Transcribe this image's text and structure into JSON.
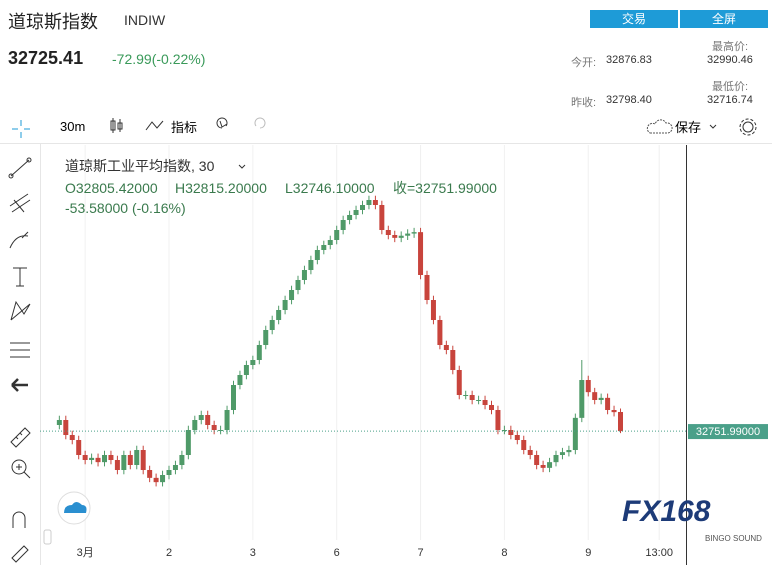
{
  "header": {
    "name": "道琼斯指数",
    "code": "INDIW",
    "price": "32725.41",
    "change": "-72.99(-0.22%)",
    "buttons": [
      "交易",
      "全屏"
    ],
    "stats": [
      {
        "label": "今开:",
        "value": "32876.83"
      },
      {
        "label": "最高价:",
        "value": "32990.46"
      },
      {
        "label": "昨收:",
        "value": "32798.40"
      },
      {
        "label": "最低价:",
        "value": "32716.74"
      }
    ]
  },
  "toolbar": {
    "interval": "30m",
    "indicators": "指标",
    "save": "保存"
  },
  "watermark": {
    "brand": "FX168",
    "sub": "BINGO SOUND"
  },
  "chart_data": {
    "type": "candlestick",
    "title": "道琼斯工业平均指数, 30",
    "legend": {
      "open": "O32805.42000",
      "high": "H32815.20000",
      "low": "L32746.10000",
      "close": "收=32751.99000",
      "change": "-53.58000 (-0.16%)"
    },
    "last_price_label": "32751.99000",
    "up_color": "#4f9a68",
    "down_color": "#c8443c",
    "xgrid": true,
    "xlim": [
      -3,
      97
    ],
    "ylim": [
      32447,
      33553
    ],
    "xticks": [
      {
        "value": 4,
        "label": "3月"
      },
      {
        "value": 17,
        "label": "2"
      },
      {
        "value": 30,
        "label": "3"
      },
      {
        "value": 43,
        "label": "6"
      },
      {
        "value": 56,
        "label": "7"
      },
      {
        "value": 69,
        "label": "8"
      },
      {
        "value": 82,
        "label": "9"
      },
      {
        "value": 93,
        "label": "13:00"
      }
    ],
    "series": {
      "open": [
        32769,
        32783,
        32741,
        32727,
        32685,
        32671,
        32677,
        32665,
        32685,
        32671,
        32643,
        32685,
        32657,
        32699,
        32643,
        32621,
        32609,
        32629,
        32643,
        32657,
        32685,
        32755,
        32783,
        32797,
        32769,
        32755,
        32755,
        32811,
        32881,
        32909,
        32937,
        32951,
        32993,
        33035,
        33063,
        33091,
        33119,
        33147,
        33175,
        33203,
        33231,
        33259,
        33273,
        33287,
        33315,
        33343,
        33357,
        33371,
        33385,
        33399,
        33385,
        33315,
        33301,
        33293,
        33299,
        33305,
        33309,
        33189,
        33119,
        33063,
        32993,
        32979,
        32923,
        32853,
        32853,
        32839,
        32839,
        32825,
        32811,
        32755,
        32755,
        32741,
        32727,
        32699,
        32685,
        32657,
        32649,
        32665,
        32685,
        32693,
        32699,
        32789,
        32895,
        32861,
        32839,
        32845,
        32811,
        32805.42
      ],
      "high": [
        32795,
        32795,
        32753,
        32739,
        32697,
        32689,
        32689,
        32697,
        32697,
        32683,
        32697,
        32697,
        32711,
        32711,
        32655,
        32633,
        32641,
        32655,
        32669,
        32697,
        32767,
        32795,
        32809,
        32809,
        32781,
        32767,
        32823,
        32893,
        32921,
        32949,
        32963,
        33005,
        33047,
        33075,
        33103,
        33131,
        33159,
        33187,
        33215,
        33243,
        33271,
        33285,
        33299,
        33327,
        33355,
        33369,
        33383,
        33397,
        33411,
        33411,
        33397,
        33327,
        33313,
        33311,
        33317,
        33321,
        33321,
        33201,
        33131,
        33075,
        33005,
        32991,
        32935,
        32865,
        32865,
        32851,
        32851,
        32837,
        32823,
        32767,
        32767,
        32753,
        32739,
        32711,
        32697,
        32669,
        32677,
        32697,
        32705,
        32711,
        32801,
        32951,
        32907,
        32873,
        32857,
        32857,
        32823,
        32815.2
      ],
      "low": [
        32757,
        32729,
        32715,
        32673,
        32659,
        32659,
        32653,
        32653,
        32659,
        32631,
        32631,
        32645,
        32645,
        32631,
        32609,
        32597,
        32597,
        32617,
        32631,
        32645,
        32673,
        32743,
        32771,
        32757,
        32743,
        32743,
        32743,
        32799,
        32869,
        32897,
        32925,
        32939,
        32981,
        33023,
        33051,
        33079,
        33107,
        33135,
        33163,
        33191,
        33219,
        33247,
        33261,
        33275,
        33303,
        33331,
        33345,
        33359,
        33373,
        33373,
        33303,
        33289,
        33281,
        33281,
        33287,
        33293,
        33177,
        33107,
        33051,
        32981,
        32967,
        32911,
        32841,
        32841,
        32827,
        32827,
        32813,
        32799,
        32743,
        32743,
        32729,
        32715,
        32687,
        32673,
        32645,
        32637,
        32637,
        32653,
        32673,
        32681,
        32687,
        32777,
        32849,
        32827,
        32827,
        32799,
        32793,
        32746.1
      ],
      "close": [
        32783,
        32741,
        32727,
        32685,
        32671,
        32677,
        32665,
        32685,
        32671,
        32643,
        32685,
        32657,
        32699,
        32643,
        32621,
        32609,
        32629,
        32643,
        32657,
        32685,
        32755,
        32783,
        32797,
        32769,
        32755,
        32755,
        32811,
        32881,
        32909,
        32937,
        32951,
        32993,
        33035,
        33063,
        33091,
        33119,
        33147,
        33175,
        33203,
        33231,
        33259,
        33273,
        33287,
        33315,
        33343,
        33357,
        33371,
        33385,
        33399,
        33385,
        33315,
        33301,
        33293,
        33299,
        33305,
        33309,
        33189,
        33119,
        33063,
        32993,
        32979,
        32923,
        32853,
        32853,
        32839,
        32839,
        32825,
        32811,
        32755,
        32755,
        32741,
        32727,
        32699,
        32685,
        32657,
        32649,
        32665,
        32685,
        32693,
        32699,
        32789,
        32895,
        32861,
        32839,
        32845,
        32811,
        32805,
        32751.99
      ]
    }
  }
}
